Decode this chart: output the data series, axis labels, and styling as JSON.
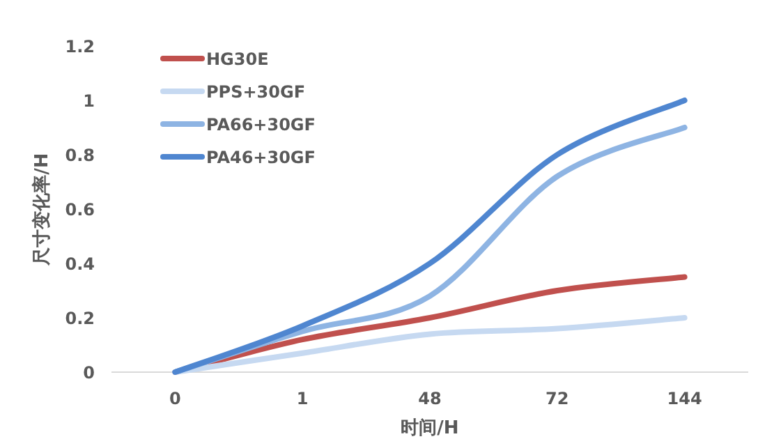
{
  "chart_data": {
    "type": "line",
    "xlabel": "时间/H",
    "ylabel": "尺寸变化率/H",
    "categories": [
      "0",
      "1",
      "48",
      "72",
      "144"
    ],
    "ylim": [
      0,
      1.2
    ],
    "yticks": [
      0,
      0.2,
      0.4,
      0.6,
      0.8,
      1,
      1.2
    ],
    "legend": "top left",
    "series": [
      {
        "name": "HG30E",
        "color": "#c0504d",
        "values": [
          0,
          0.12,
          0.2,
          0.3,
          0.35
        ]
      },
      {
        "name": "PPS+30GF",
        "color": "#c6d9f1",
        "values": [
          0,
          0.07,
          0.14,
          0.16,
          0.2
        ]
      },
      {
        "name": "PA66+30GF",
        "color": "#8eb4e3",
        "values": [
          0,
          0.15,
          0.28,
          0.72,
          0.9
        ]
      },
      {
        "name": "PA46+30GF",
        "color": "#4f86d0",
        "values": [
          0,
          0.17,
          0.4,
          0.8,
          1.0
        ]
      }
    ]
  }
}
